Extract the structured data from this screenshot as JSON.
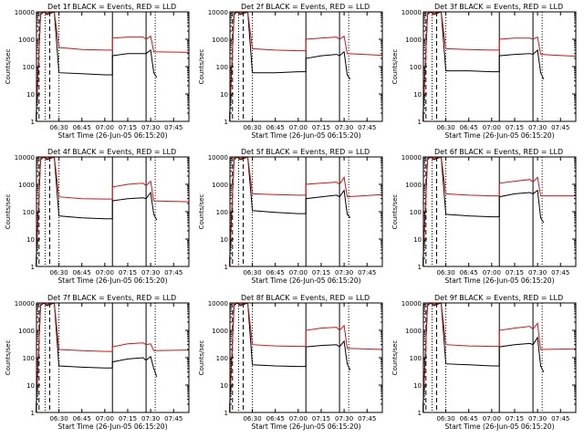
{
  "colors": {
    "events": "#000000",
    "lld": "#e01010",
    "axes": "#000000"
  },
  "chart_data": [
    {
      "type": "line",
      "title": "Det 1f BLACK = Events, RED = LLD",
      "xlabel": "Start Time (26-Jun-05 06:15:20)",
      "ylabel": "Counts/sec",
      "yscale": "log",
      "ylim": [
        1,
        10000
      ],
      "xlim": [
        "06:15:20",
        "07:55:00"
      ],
      "yticks": [
        "1",
        "10",
        "100",
        "1000",
        "10000"
      ],
      "xticks": [
        "06:30",
        "06:45",
        "07:00",
        "07:15",
        "07:30",
        "07:45"
      ],
      "series": [
        {
          "name": "Events",
          "color": "#000000",
          "x": [
            "06:15",
            "06:18",
            "06:20",
            "06:22",
            "06:27",
            "06:30",
            "06:45",
            "07:00",
            "07:05",
            "07:05",
            "07:15",
            "07:25",
            "07:27",
            "07:30",
            "07:32",
            "07:34"
          ],
          "y": [
            1,
            8000,
            10000,
            8000,
            10000,
            60,
            55,
            50,
            50,
            250,
            300,
            300,
            300,
            400,
            60,
            40
          ]
        },
        {
          "name": "LLD",
          "color": "#e01010",
          "x": [
            "06:15",
            "06:18",
            "06:20",
            "06:22",
            "06:27",
            "06:30",
            "06:45",
            "07:00",
            "07:05",
            "07:05",
            "07:15",
            "07:25",
            "07:27",
            "07:30",
            "07:32",
            "07:55"
          ],
          "y": [
            1,
            9000,
            11000,
            9000,
            11000,
            500,
            420,
            400,
            400,
            1100,
            1200,
            1200,
            1000,
            1300,
            350,
            330
          ]
        }
      ]
    },
    {
      "type": "line",
      "title": "Det 2f BLACK = Events, RED = LLD",
      "xlabel": "Start Time (26-Jun-05 06:15:20)",
      "ylabel": "Counts/sec",
      "yscale": "log",
      "ylim": [
        1,
        10000
      ],
      "xlim": [
        "06:15:20",
        "07:55:00"
      ],
      "yticks": [
        "1",
        "10",
        "100",
        "1000",
        "10000"
      ],
      "xticks": [
        "06:30",
        "06:45",
        "07:00",
        "07:15",
        "07:30",
        "07:45"
      ],
      "series": [
        {
          "name": "Events",
          "color": "#000000",
          "x": [
            "06:15",
            "06:18",
            "06:20",
            "06:22",
            "06:27",
            "06:30",
            "06:45",
            "07:00",
            "07:05",
            "07:05",
            "07:15",
            "07:25",
            "07:27",
            "07:30",
            "07:32",
            "07:34"
          ],
          "y": [
            1,
            8000,
            10000,
            8000,
            10000,
            60,
            60,
            65,
            65,
            200,
            250,
            280,
            250,
            350,
            50,
            35
          ]
        },
        {
          "name": "LLD",
          "color": "#e01010",
          "x": [
            "06:15",
            "06:18",
            "06:20",
            "06:22",
            "06:27",
            "06:30",
            "06:45",
            "07:00",
            "07:05",
            "07:05",
            "07:15",
            "07:25",
            "07:27",
            "07:30",
            "07:32",
            "07:55"
          ],
          "y": [
            1,
            9000,
            11000,
            9000,
            11000,
            450,
            400,
            380,
            380,
            1000,
            1100,
            1200,
            1000,
            1300,
            300,
            260
          ]
        }
      ]
    },
    {
      "type": "line",
      "title": "Det 3f BLACK = Events, RED = LLD",
      "xlabel": "Start Time (26-Jun-05 06:15:20)",
      "ylabel": "Counts/sec",
      "yscale": "log",
      "ylim": [
        1,
        10000
      ],
      "xlim": [
        "06:15:20",
        "07:55:00"
      ],
      "yticks": [
        "1",
        "10",
        "100",
        "1000",
        "10000"
      ],
      "xticks": [
        "06:30",
        "06:45",
        "07:00",
        "07:15",
        "07:30",
        "07:45"
      ],
      "series": [
        {
          "name": "Events",
          "color": "#000000",
          "x": [
            "06:15",
            "06:18",
            "06:20",
            "06:22",
            "06:27",
            "06:30",
            "06:45",
            "07:00",
            "07:05",
            "07:05",
            "07:15",
            "07:25",
            "07:27",
            "07:30",
            "07:32",
            "07:34"
          ],
          "y": [
            1,
            8000,
            10000,
            8000,
            10000,
            70,
            70,
            65,
            65,
            250,
            280,
            300,
            280,
            400,
            60,
            35
          ]
        },
        {
          "name": "LLD",
          "color": "#e01010",
          "x": [
            "06:15",
            "06:18",
            "06:20",
            "06:22",
            "06:27",
            "06:30",
            "06:45",
            "07:00",
            "07:05",
            "07:05",
            "07:15",
            "07:25",
            "07:27",
            "07:30",
            "07:32",
            "07:55"
          ],
          "y": [
            1,
            9000,
            11000,
            9000,
            11000,
            450,
            420,
            400,
            400,
            1000,
            1100,
            1100,
            1000,
            1200,
            280,
            240
          ]
        }
      ]
    },
    {
      "type": "line",
      "title": "Det 4f BLACK = Events, RED = LLD",
      "xlabel": "Start Time (26-Jun-05 06:15:20)",
      "ylabel": "Counts/sec",
      "yscale": "log",
      "ylim": [
        1,
        10000
      ],
      "xlim": [
        "06:15:20",
        "07:55:00"
      ],
      "yticks": [
        "1",
        "10",
        "100",
        "1000",
        "10000"
      ],
      "xticks": [
        "06:30",
        "06:45",
        "07:00",
        "07:15",
        "07:30",
        "07:45"
      ],
      "series": [
        {
          "name": "Events",
          "color": "#000000",
          "x": [
            "06:15",
            "06:18",
            "06:20",
            "06:22",
            "06:27",
            "06:30",
            "06:45",
            "07:00",
            "07:05",
            "07:05",
            "07:15",
            "07:25",
            "07:27",
            "07:30",
            "07:32",
            "07:34"
          ],
          "y": [
            1,
            8000,
            10000,
            8000,
            10000,
            70,
            60,
            55,
            55,
            250,
            300,
            320,
            300,
            500,
            80,
            50
          ]
        },
        {
          "name": "LLD",
          "color": "#e01010",
          "x": [
            "06:15",
            "06:18",
            "06:20",
            "06:22",
            "06:27",
            "06:30",
            "06:45",
            "07:00",
            "07:05",
            "07:05",
            "07:15",
            "07:25",
            "07:27",
            "07:30",
            "07:32",
            "07:55"
          ],
          "y": [
            1,
            9000,
            11000,
            9000,
            11000,
            350,
            300,
            290,
            290,
            800,
            1000,
            1100,
            900,
            1300,
            250,
            230
          ]
        }
      ]
    },
    {
      "type": "line",
      "title": "Det 5f BLACK = Events, RED = LLD",
      "xlabel": "Start Time (26-Jun-05 06:15:20)",
      "ylabel": "Counts/sec",
      "yscale": "log",
      "ylim": [
        1,
        10000
      ],
      "xlim": [
        "06:15:20",
        "07:55:00"
      ],
      "yticks": [
        "1",
        "10",
        "100",
        "1000",
        "10000"
      ],
      "xticks": [
        "06:30",
        "06:45",
        "07:00",
        "07:15",
        "07:30",
        "07:45"
      ],
      "series": [
        {
          "name": "Events",
          "color": "#000000",
          "x": [
            "06:15",
            "06:18",
            "06:20",
            "06:22",
            "06:27",
            "06:30",
            "06:45",
            "07:00",
            "07:05",
            "07:05",
            "07:15",
            "07:25",
            "07:27",
            "07:30",
            "07:32",
            "07:34"
          ],
          "y": [
            1,
            8000,
            10000,
            8000,
            10000,
            110,
            95,
            85,
            85,
            300,
            350,
            400,
            350,
            600,
            80,
            60
          ]
        },
        {
          "name": "LLD",
          "color": "#e01010",
          "x": [
            "06:15",
            "06:18",
            "06:20",
            "06:22",
            "06:27",
            "06:30",
            "06:45",
            "07:00",
            "07:05",
            "07:05",
            "07:15",
            "07:25",
            "07:27",
            "07:30",
            "07:32",
            "07:55"
          ],
          "y": [
            1,
            9000,
            11000,
            9000,
            11000,
            450,
            420,
            400,
            400,
            1000,
            1100,
            1200,
            1000,
            1800,
            350,
            420
          ]
        }
      ]
    },
    {
      "type": "line",
      "title": "Det 6f BLACK = Events, RED = LLD",
      "xlabel": "Start Time (26-Jun-05 06:15:20)",
      "ylabel": "Counts/sec",
      "yscale": "log",
      "ylim": [
        1,
        10000
      ],
      "xlim": [
        "06:15:20",
        "07:55:00"
      ],
      "yticks": [
        "1",
        "10",
        "100",
        "1000",
        "10000"
      ],
      "xticks": [
        "06:30",
        "06:45",
        "07:00",
        "07:15",
        "07:30",
        "07:45"
      ],
      "series": [
        {
          "name": "Events",
          "color": "#000000",
          "x": [
            "06:15",
            "06:18",
            "06:20",
            "06:22",
            "06:27",
            "06:30",
            "06:45",
            "07:00",
            "07:05",
            "07:05",
            "07:15",
            "07:25",
            "07:27",
            "07:30",
            "07:32",
            "07:34"
          ],
          "y": [
            1,
            8000,
            10000,
            8000,
            10000,
            80,
            70,
            65,
            65,
            350,
            450,
            500,
            450,
            600,
            60,
            40
          ]
        },
        {
          "name": "LLD",
          "color": "#e01010",
          "x": [
            "06:15",
            "06:18",
            "06:20",
            "06:22",
            "06:27",
            "06:30",
            "06:45",
            "07:00",
            "07:05",
            "07:05",
            "07:15",
            "07:25",
            "07:27",
            "07:30",
            "07:32",
            "07:55"
          ],
          "y": [
            1,
            9000,
            11000,
            9000,
            11000,
            450,
            400,
            380,
            380,
            1100,
            1300,
            1500,
            1200,
            1800,
            380,
            380
          ]
        }
      ]
    },
    {
      "type": "line",
      "title": "Det 7f BLACK = Events, RED = LLD",
      "xlabel": "Start Time (26-Jun-05 06:15:20)",
      "ylabel": "Counts/sec",
      "yscale": "log",
      "ylim": [
        1,
        10000
      ],
      "xlim": [
        "06:15:20",
        "07:55:00"
      ],
      "yticks": [
        "1",
        "10",
        "100",
        "1000",
        "10000"
      ],
      "xticks": [
        "06:30",
        "06:45",
        "07:00",
        "07:15",
        "07:30",
        "07:45"
      ],
      "series": [
        {
          "name": "Events",
          "color": "#000000",
          "x": [
            "06:15",
            "06:18",
            "06:20",
            "06:22",
            "06:27",
            "06:30",
            "06:45",
            "07:00",
            "07:05",
            "07:05",
            "07:15",
            "07:25",
            "07:27",
            "07:30",
            "07:32",
            "07:34"
          ],
          "y": [
            1,
            8000,
            10000,
            8000,
            10000,
            50,
            45,
            42,
            42,
            70,
            90,
            100,
            80,
            110,
            40,
            20
          ]
        },
        {
          "name": "LLD",
          "color": "#e01010",
          "x": [
            "06:15",
            "06:18",
            "06:20",
            "06:22",
            "06:27",
            "06:30",
            "06:45",
            "07:00",
            "07:05",
            "07:05",
            "07:15",
            "07:25",
            "07:27",
            "07:30",
            "07:32",
            "07:55"
          ],
          "y": [
            1,
            9000,
            11000,
            9000,
            11000,
            200,
            180,
            170,
            170,
            250,
            320,
            350,
            300,
            320,
            180,
            190
          ]
        }
      ]
    },
    {
      "type": "line",
      "title": "Det 8f BLACK = Events, RED = LLD",
      "xlabel": "Start Time (26-Jun-05 06:15:20)",
      "ylabel": "Counts/sec",
      "yscale": "log",
      "ylim": [
        1,
        10000
      ],
      "xlim": [
        "06:15:20",
        "07:55:00"
      ],
      "yticks": [
        "1",
        "10",
        "100",
        "1000",
        "10000"
      ],
      "xticks": [
        "06:30",
        "06:45",
        "07:00",
        "07:15",
        "07:30",
        "07:45"
      ],
      "series": [
        {
          "name": "Events",
          "color": "#000000",
          "x": [
            "06:15",
            "06:18",
            "06:20",
            "06:22",
            "06:27",
            "06:30",
            "06:45",
            "07:00",
            "07:05",
            "07:05",
            "07:15",
            "07:25",
            "07:27",
            "07:30",
            "07:32",
            "07:34"
          ],
          "y": [
            1,
            8000,
            10000,
            8000,
            10000,
            55,
            50,
            48,
            48,
            250,
            280,
            300,
            250,
            400,
            60,
            35
          ]
        },
        {
          "name": "LLD",
          "color": "#e01010",
          "x": [
            "06:15",
            "06:18",
            "06:20",
            "06:22",
            "06:27",
            "06:30",
            "06:45",
            "07:00",
            "07:05",
            "07:05",
            "07:15",
            "07:25",
            "07:27",
            "07:30",
            "07:32",
            "07:55"
          ],
          "y": [
            1,
            9000,
            11000,
            9000,
            11000,
            300,
            270,
            260,
            260,
            1000,
            1200,
            1300,
            1000,
            1500,
            220,
            200
          ]
        }
      ]
    },
    {
      "type": "line",
      "title": "Det 9f BLACK = Events, RED = LLD",
      "xlabel": "Start Time (26-Jun-05 06:15:20)",
      "ylabel": "Counts/sec",
      "yscale": "log",
      "ylim": [
        1,
        10000
      ],
      "xlim": [
        "06:15:20",
        "07:55:00"
      ],
      "yticks": [
        "1",
        "10",
        "100",
        "1000",
        "10000"
      ],
      "xticks": [
        "06:30",
        "06:45",
        "07:00",
        "07:15",
        "07:30",
        "07:45"
      ],
      "series": [
        {
          "name": "Events",
          "color": "#000000",
          "x": [
            "06:15",
            "06:18",
            "06:20",
            "06:22",
            "06:27",
            "06:30",
            "06:45",
            "07:00",
            "07:05",
            "07:05",
            "07:15",
            "07:25",
            "07:27",
            "07:30",
            "07:32",
            "07:34"
          ],
          "y": [
            1,
            8000,
            10000,
            8000,
            10000,
            60,
            55,
            50,
            50,
            250,
            300,
            330,
            300,
            550,
            50,
            30
          ]
        },
        {
          "name": "LLD",
          "color": "#e01010",
          "x": [
            "06:15",
            "06:18",
            "06:20",
            "06:22",
            "06:27",
            "06:30",
            "06:45",
            "07:00",
            "07:05",
            "07:05",
            "07:15",
            "07:25",
            "07:27",
            "07:30",
            "07:32",
            "07:55"
          ],
          "y": [
            1,
            9000,
            11000,
            9000,
            11000,
            300,
            270,
            260,
            260,
            1000,
            1200,
            1400,
            1100,
            1800,
            200,
            210
          ]
        }
      ]
    }
  ],
  "vertical_markers": [
    {
      "style": "dashed",
      "time": "06:17"
    },
    {
      "style": "dashed",
      "time": "06:24"
    },
    {
      "style": "dotted",
      "time": "06:21"
    },
    {
      "style": "dotted",
      "time": "06:30"
    },
    {
      "style": "solid",
      "time": "07:05"
    },
    {
      "style": "solid",
      "time": "07:27"
    },
    {
      "style": "dotted",
      "time": "07:33"
    }
  ]
}
